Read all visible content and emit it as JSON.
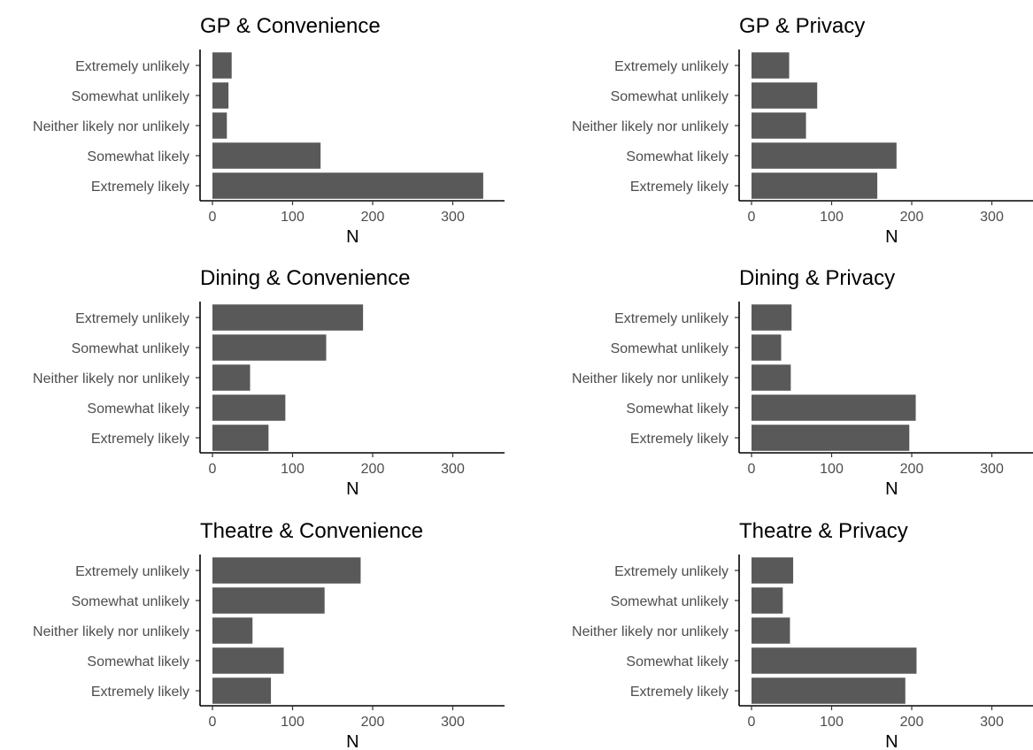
{
  "chart_data": [
    {
      "type": "bar",
      "orientation": "horizontal",
      "title": "GP & Convenience",
      "xlabel": "N",
      "categories": [
        "Extremely unlikely",
        "Somewhat unlikely",
        "Neither likely nor unlikely",
        "Somewhat likely",
        "Extremely likely"
      ],
      "values": [
        24,
        20,
        18,
        135,
        338
      ],
      "xticks": [
        0,
        100,
        200,
        300
      ],
      "xlim": [
        0,
        350
      ],
      "bar_color": "#595959"
    },
    {
      "type": "bar",
      "orientation": "horizontal",
      "title": "GP & Privacy",
      "xlabel": "N",
      "categories": [
        "Extremely unlikely",
        "Somewhat unlikely",
        "Neither likely nor unlikely",
        "Somewhat likely",
        "Extremely likely"
      ],
      "values": [
        47,
        82,
        68,
        181,
        157
      ],
      "xticks": [
        0,
        100,
        200,
        300
      ],
      "xlim": [
        0,
        350
      ],
      "bar_color": "#595959"
    },
    {
      "type": "bar",
      "orientation": "horizontal",
      "title": "Dining & Convenience",
      "xlabel": "N",
      "categories": [
        "Extremely unlikely",
        "Somewhat unlikely",
        "Neither likely nor unlikely",
        "Somewhat likely",
        "Extremely likely"
      ],
      "values": [
        188,
        142,
        47,
        91,
        70
      ],
      "xticks": [
        0,
        100,
        200,
        300
      ],
      "xlim": [
        0,
        350
      ],
      "bar_color": "#595959"
    },
    {
      "type": "bar",
      "orientation": "horizontal",
      "title": "Dining & Privacy",
      "xlabel": "N",
      "categories": [
        "Extremely unlikely",
        "Somewhat unlikely",
        "Neither likely nor unlikely",
        "Somewhat likely",
        "Extremely likely"
      ],
      "values": [
        50,
        37,
        49,
        205,
        197
      ],
      "xticks": [
        0,
        100,
        200,
        300
      ],
      "xlim": [
        0,
        350
      ],
      "bar_color": "#595959"
    },
    {
      "type": "bar",
      "orientation": "horizontal",
      "title": "Theatre & Convenience",
      "xlabel": "N",
      "categories": [
        "Extremely unlikely",
        "Somewhat unlikely",
        "Neither likely nor unlikely",
        "Somewhat likely",
        "Extremely likely"
      ],
      "values": [
        185,
        140,
        50,
        89,
        73
      ],
      "xticks": [
        0,
        100,
        200,
        300
      ],
      "xlim": [
        0,
        350
      ],
      "bar_color": "#595959"
    },
    {
      "type": "bar",
      "orientation": "horizontal",
      "title": "Theatre & Privacy",
      "xlabel": "N",
      "categories": [
        "Extremely unlikely",
        "Somewhat unlikely",
        "Neither likely nor unlikely",
        "Somewhat likely",
        "Extremely likely"
      ],
      "values": [
        52,
        39,
        48,
        206,
        192
      ],
      "xticks": [
        0,
        100,
        200,
        300
      ],
      "xlim": [
        0,
        350
      ],
      "bar_color": "#595959"
    }
  ]
}
